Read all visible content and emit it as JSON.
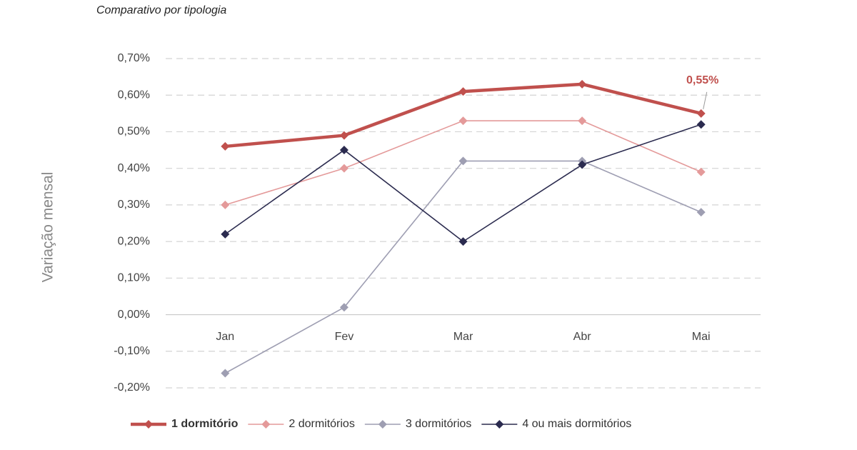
{
  "chart_data": {
    "type": "line",
    "title": "Comparativo por tipologia",
    "y_label": "Variação mensal",
    "categories": [
      "Jan",
      "Fev",
      "Mar",
      "Abr",
      "Mai"
    ],
    "series": [
      {
        "name": "1 dormitório",
        "color": "#c0504d",
        "values": [
          0.46,
          0.49,
          0.61,
          0.63,
          0.55
        ],
        "value_labels": [
          null,
          null,
          null,
          null,
          "0,55%"
        ]
      },
      {
        "name": "2 dormitórios",
        "color": "#e49a9a",
        "values": [
          0.3,
          0.4,
          0.53,
          0.53,
          0.39
        ]
      },
      {
        "name": "3 dormitórios",
        "color": "#9e9eb2",
        "values": [
          -0.16,
          0.02,
          0.42,
          0.42,
          0.28
        ]
      },
      {
        "name": "4 ou mais dormitórios",
        "color": "#2b2b4f",
        "values": [
          0.22,
          0.45,
          0.2,
          0.41,
          0.52
        ]
      }
    ],
    "ylim": [
      -0.2,
      0.7
    ],
    "yticks": [
      {
        "value": -0.2,
        "label": "-0,20%"
      },
      {
        "value": -0.1,
        "label": "-0,10%"
      },
      {
        "value": 0,
        "label": "0,00%"
      },
      {
        "value": 0.1,
        "label": "0,10%"
      },
      {
        "value": 0.2,
        "label": "0,20%"
      },
      {
        "value": 0.3,
        "label": "0,30%"
      },
      {
        "value": 0.4,
        "label": "0,40%"
      },
      {
        "value": 0.5,
        "label": "0,50%"
      },
      {
        "value": 0.6,
        "label": "0,60%"
      },
      {
        "value": 0.7,
        "label": "0,70%"
      }
    ],
    "grid": true,
    "legend": "bottom"
  }
}
